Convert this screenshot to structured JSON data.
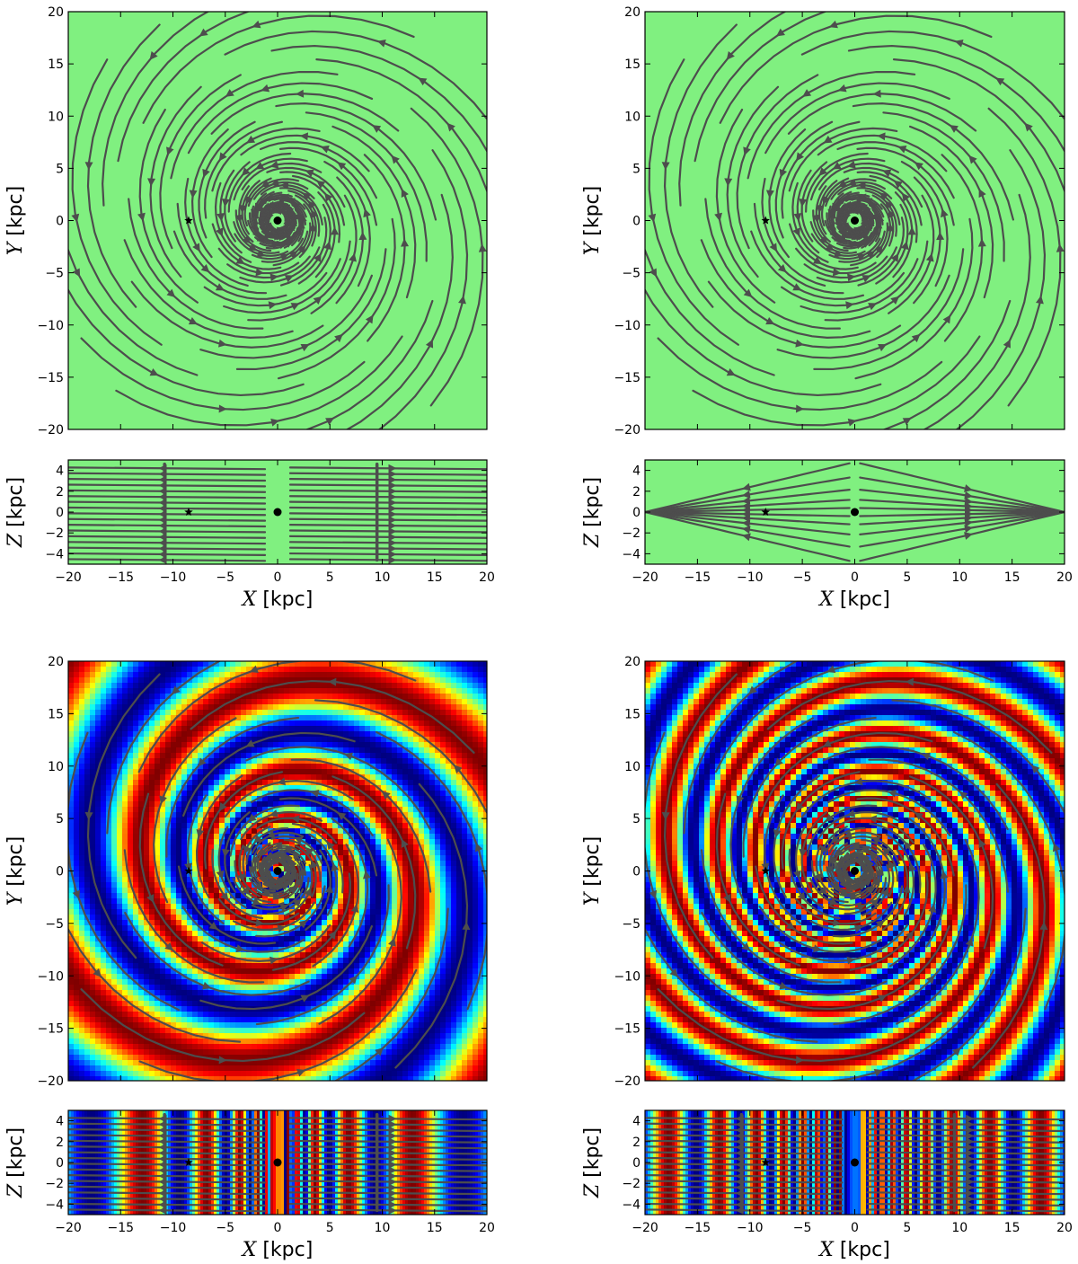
{
  "chart_data": [
    {
      "type": "streamplot",
      "panel": "top-left-xy",
      "xlabel": {
        "sym": "X",
        "unit": "[kpc]"
      },
      "ylabel": {
        "sym": "Y",
        "unit": "[kpc]"
      },
      "xlim": [
        -20,
        20
      ],
      "ylim": [
        -20,
        20
      ],
      "yticks": [
        -20,
        -15,
        -10,
        -5,
        0,
        5,
        10,
        15,
        20
      ],
      "show_xticklabels": false,
      "background": "uniform",
      "pitch_deg": 11.5,
      "arms": 2,
      "markers": [
        {
          "label": "sun",
          "symbol": "star",
          "x": -8.5,
          "y": 0
        },
        {
          "label": "galactic-center",
          "symbol": "dot",
          "x": 0,
          "y": 0
        }
      ]
    },
    {
      "type": "streamplot",
      "panel": "top-left-xz",
      "xlabel": {
        "sym": "X",
        "unit": "[kpc]"
      },
      "ylabel": {
        "sym": "Z",
        "unit": "[kpc]"
      },
      "xlim": [
        -20,
        20
      ],
      "ylim": [
        -5,
        5
      ],
      "xticks": [
        -20,
        -15,
        -10,
        -5,
        0,
        5,
        10,
        15,
        20
      ],
      "yticks": [
        -4,
        -2,
        0,
        2,
        4
      ],
      "background": "uniform",
      "field": "horizontal",
      "markers": [
        {
          "label": "sun",
          "symbol": "star",
          "x": -8.5,
          "y": 0
        },
        {
          "label": "galactic-center",
          "symbol": "dot",
          "x": 0,
          "y": 0
        }
      ]
    },
    {
      "type": "streamplot",
      "panel": "top-right-xy",
      "xlabel": {
        "sym": "X",
        "unit": "[kpc]"
      },
      "ylabel": {
        "sym": "Y",
        "unit": "[kpc]"
      },
      "xlim": [
        -20,
        20
      ],
      "ylim": [
        -20,
        20
      ],
      "yticks": [
        -20,
        -15,
        -10,
        -5,
        0,
        5,
        10,
        15,
        20
      ],
      "show_xticklabels": false,
      "background": "uniform",
      "pitch_deg": 11.5,
      "arms": 2,
      "markers": [
        {
          "label": "sun",
          "symbol": "star",
          "x": -8.5,
          "y": 0
        },
        {
          "label": "galactic-center",
          "symbol": "dot",
          "x": 0,
          "y": 0
        }
      ]
    },
    {
      "type": "streamplot",
      "panel": "top-right-xz",
      "xlabel": {
        "sym": "X",
        "unit": "[kpc]"
      },
      "ylabel": {
        "sym": "Z",
        "unit": "[kpc]"
      },
      "xlim": [
        -20,
        20
      ],
      "ylim": [
        -5,
        5
      ],
      "xticks": [
        -20,
        -15,
        -10,
        -5,
        0,
        5,
        10,
        15,
        20
      ],
      "yticks": [
        -4,
        -2,
        0,
        2,
        4
      ],
      "background": "uniform",
      "field": "x-shaped",
      "markers": [
        {
          "label": "sun",
          "symbol": "star",
          "x": -8.5,
          "y": 0
        },
        {
          "label": "galactic-center",
          "symbol": "dot",
          "x": 0,
          "y": 0
        }
      ]
    },
    {
      "type": "streamplot",
      "panel": "bottom-left-xy",
      "xlabel": {
        "sym": "X",
        "unit": "[kpc]"
      },
      "ylabel": {
        "sym": "Y",
        "unit": "[kpc]"
      },
      "xlim": [
        -20,
        20
      ],
      "ylim": [
        -20,
        20
      ],
      "yticks": [
        -20,
        -15,
        -10,
        -5,
        0,
        5,
        10,
        15,
        20
      ],
      "show_xticklabels": false,
      "background": "spiral-colormap",
      "pitch_deg": 11.5,
      "arms": 2,
      "colormap": "jet",
      "markers": [
        {
          "label": "sun",
          "symbol": "star",
          "x": -8.5,
          "y": 0
        },
        {
          "label": "galactic-center",
          "symbol": "dot",
          "x": 0,
          "y": 0
        }
      ]
    },
    {
      "type": "streamplot",
      "panel": "bottom-left-xz",
      "xlabel": {
        "sym": "X",
        "unit": "[kpc]"
      },
      "ylabel": {
        "sym": "Z",
        "unit": "[kpc]"
      },
      "xlim": [
        -20,
        20
      ],
      "ylim": [
        -5,
        5
      ],
      "xticks": [
        -20,
        -15,
        -10,
        -5,
        0,
        5,
        10,
        15,
        20
      ],
      "yticks": [
        -4,
        -2,
        0,
        2,
        4
      ],
      "background": "banded-colormap",
      "field": "horizontal",
      "colormap": "jet",
      "markers": [
        {
          "label": "sun",
          "symbol": "star",
          "x": -8.5,
          "y": 0
        },
        {
          "label": "galactic-center",
          "symbol": "dot",
          "x": 0,
          "y": 0
        }
      ]
    },
    {
      "type": "streamplot",
      "panel": "bottom-right-xy",
      "xlabel": {
        "sym": "X",
        "unit": "[kpc]"
      },
      "ylabel": {
        "sym": "Y",
        "unit": "[kpc]"
      },
      "xlim": [
        -20,
        20
      ],
      "ylim": [
        -20,
        20
      ],
      "yticks": [
        -20,
        -15,
        -10,
        -5,
        0,
        5,
        10,
        15,
        20
      ],
      "show_xticklabels": false,
      "background": "spiral-colormap",
      "pitch_deg": 11.5,
      "arms": 4,
      "colormap": "jet",
      "markers": [
        {
          "label": "sun",
          "symbol": "star",
          "x": -8.5,
          "y": 0
        },
        {
          "label": "galactic-center",
          "symbol": "dot",
          "x": 0,
          "y": 0
        }
      ]
    },
    {
      "type": "streamplot",
      "panel": "bottom-right-xz",
      "xlabel": {
        "sym": "X",
        "unit": "[kpc]"
      },
      "ylabel": {
        "sym": "Z",
        "unit": "[kpc]"
      },
      "xlim": [
        -20,
        20
      ],
      "ylim": [
        -5,
        5
      ],
      "xticks": [
        -20,
        -15,
        -10,
        -5,
        0,
        5,
        10,
        15,
        20
      ],
      "yticks": [
        -4,
        -2,
        0,
        2,
        4
      ],
      "background": "banded-colormap",
      "field": "horizontal",
      "colormap": "jet",
      "markers": [
        {
          "label": "sun",
          "symbol": "star",
          "x": -8.5,
          "y": 0
        },
        {
          "label": "galactic-center",
          "symbol": "dot",
          "x": 0,
          "y": 0
        }
      ]
    }
  ],
  "colors": {
    "uniform_background": "#80f080",
    "streamline": "#4d4d4d",
    "marker": "#000000",
    "frame": "#000000"
  }
}
